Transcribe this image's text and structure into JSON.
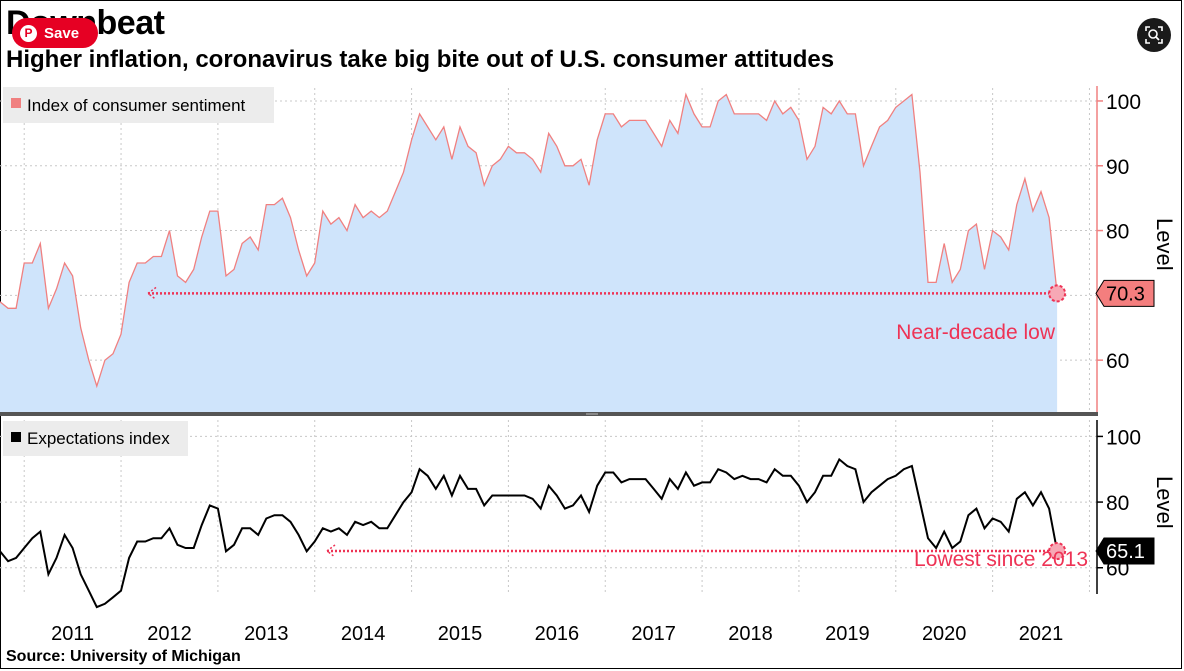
{
  "header": {
    "title": "Downbeat",
    "subtitle": "Higher inflation, coronavirus take big bite out of U.S. consumer attitudes",
    "save_label": "Save",
    "source": "Source: University of Michigan"
  },
  "icons": {
    "save": "pinterest-icon",
    "lens": "visual-search-icon"
  },
  "colors": {
    "sentiment_fill": "#cfe4fb",
    "sentiment_line": "#f08080",
    "expectations_line": "#000000",
    "annotation": "#ee3355",
    "callout_top_bg": "#f47e7e",
    "callout_bottom_bg": "#000000",
    "divider": "#555555"
  },
  "chart_data": [
    {
      "type": "area",
      "title": "Index of consumer sentiment",
      "legend": "Index of consumer sentiment",
      "ylabel": "Level",
      "ylim": [
        52,
        102
      ],
      "yticks": [
        60,
        70,
        80,
        90,
        100
      ],
      "ytick_labels": [
        "60",
        "",
        "80",
        "90",
        "100"
      ],
      "x_start": 2010.25,
      "x_end": 2021.33,
      "x_step": 0.08333,
      "values": [
        69,
        68,
        68,
        75,
        75,
        78,
        68,
        71,
        75,
        73,
        65,
        60,
        56,
        60,
        61,
        64,
        72,
        75,
        75,
        76,
        76,
        80,
        73,
        72,
        74,
        79,
        83,
        83,
        73,
        74,
        78,
        79,
        77,
        84,
        84,
        85,
        82,
        77,
        73,
        75,
        83,
        81,
        82,
        80,
        84,
        82,
        83,
        82,
        83,
        86,
        89,
        94,
        98,
        96,
        94,
        96,
        91,
        96,
        93,
        92,
        87,
        90,
        91,
        93,
        92,
        92,
        91,
        89,
        95,
        93,
        90,
        90,
        91,
        87,
        94,
        98,
        98,
        96,
        97,
        97,
        97,
        95,
        93,
        97,
        95,
        101,
        98,
        96,
        96,
        100,
        101,
        98,
        98,
        98,
        98,
        97,
        100,
        98,
        99,
        97,
        91,
        93,
        99,
        98,
        100,
        98,
        98,
        90,
        93,
        96,
        97,
        99,
        100,
        101,
        89,
        72,
        72,
        78,
        72,
        74,
        80,
        81,
        74,
        80,
        79,
        77,
        84,
        88,
        83,
        86,
        82,
        70.3
      ],
      "last_value_label": "70.3",
      "reference_level": 70.3,
      "annotation": "Near-decade low"
    },
    {
      "type": "line",
      "title": "Expectations index",
      "legend": "Expectations index",
      "ylabel": "Level",
      "ylim": [
        52,
        105
      ],
      "yticks": [
        60,
        80,
        100
      ],
      "ytick_labels": [
        "60",
        "80",
        "100"
      ],
      "x_start": 2010.25,
      "x_end": 2021.33,
      "x_step": 0.08333,
      "values": [
        65,
        62,
        63,
        66,
        69,
        71,
        58,
        63,
        70,
        66,
        58,
        53,
        48,
        49,
        51,
        53,
        63,
        68,
        68,
        69,
        69,
        72,
        67,
        66,
        66,
        73,
        79,
        78,
        65,
        67,
        72,
        72,
        70,
        75,
        76,
        76,
        74,
        70,
        65,
        68,
        72,
        71,
        72,
        70,
        74,
        73,
        74,
        72,
        72,
        76,
        80,
        83,
        90,
        88,
        84,
        88,
        82,
        88,
        84,
        84,
        79,
        82,
        82,
        82,
        82,
        82,
        81,
        78,
        85,
        82,
        78,
        79,
        82,
        77,
        85,
        89,
        89,
        86,
        87,
        87,
        87,
        84,
        81,
        87,
        84,
        89,
        85,
        86,
        86,
        90,
        89,
        87,
        88,
        87,
        87,
        86,
        90,
        88,
        88,
        85,
        80,
        83,
        88,
        88,
        93,
        91,
        90,
        80,
        83,
        85,
        87,
        88,
        90,
        91,
        80,
        69,
        66,
        71,
        66,
        68,
        76,
        78,
        72,
        75,
        74,
        71,
        81,
        83,
        79,
        83,
        78,
        65.1
      ],
      "last_value_label": "65.1",
      "reference_level": 65.1,
      "annotation": "Lowest since 2013"
    }
  ],
  "x_axis": {
    "tick_labels": [
      "2011",
      "2012",
      "2013",
      "2014",
      "2015",
      "2016",
      "2017",
      "2018",
      "2019",
      "2020",
      "2021"
    ],
    "tick_years": [
      2011,
      2012,
      2013,
      2014,
      2015,
      2016,
      2017,
      2018,
      2019,
      2020,
      2021
    ]
  }
}
